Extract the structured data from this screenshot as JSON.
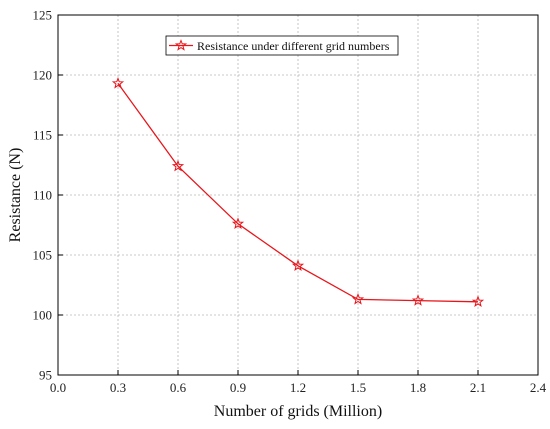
{
  "chart_data": {
    "type": "line",
    "xlabel": "Number of grids (Million)",
    "ylabel": "Resistance (N)",
    "xlim": [
      0.0,
      2.4
    ],
    "ylim": [
      95,
      125
    ],
    "x_ticks": [
      "0.0",
      "0.3",
      "0.6",
      "0.9",
      "1.2",
      "1.5",
      "1.8",
      "2.1",
      "2.4"
    ],
    "y_ticks": [
      "95",
      "100",
      "105",
      "110",
      "115",
      "120",
      "125"
    ],
    "grid": true,
    "legend_position": "top-center",
    "series": [
      {
        "name": "Resistance under different grid numbers",
        "color": "#e8151b",
        "marker": "star",
        "x": [
          0.3,
          0.6,
          0.9,
          1.2,
          1.5,
          1.8,
          2.1
        ],
        "y": [
          119.3,
          112.4,
          107.6,
          104.1,
          101.3,
          101.2,
          101.1
        ]
      }
    ]
  }
}
